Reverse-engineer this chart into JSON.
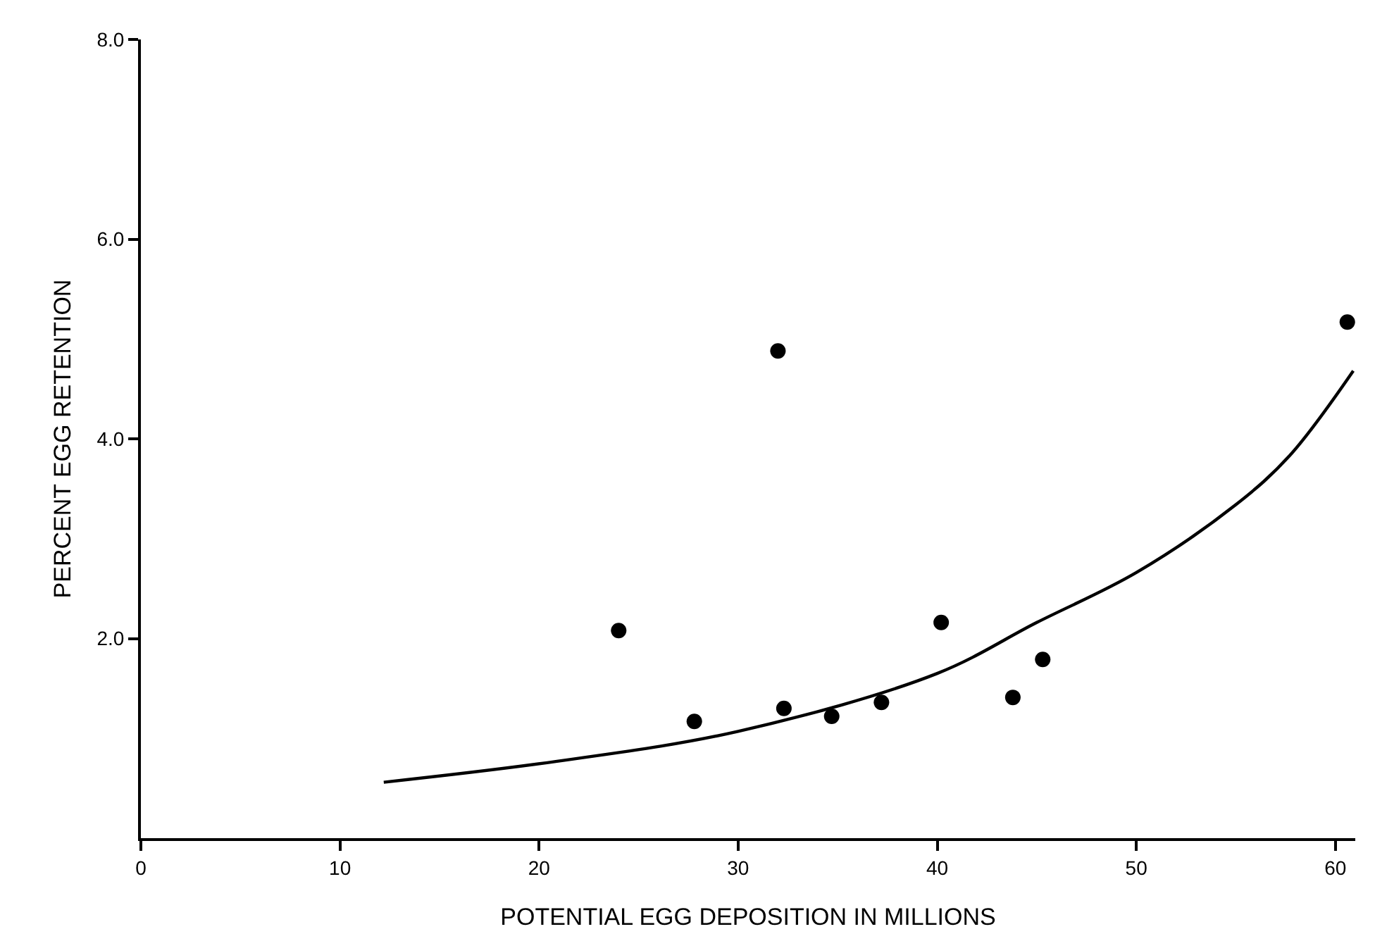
{
  "chart_data": {
    "type": "scatter",
    "xlabel": "POTENTIAL EGG DEPOSITION IN MILLIONS",
    "ylabel": "PERCENT EGG RETENTION",
    "xlim": [
      0,
      61
    ],
    "xticks": [
      0,
      10,
      20,
      30,
      40,
      50,
      60
    ],
    "ylim": [
      0,
      8
    ],
    "yticks": [
      {
        "value": 2,
        "label": "2.0"
      },
      {
        "value": 4,
        "label": "4.0"
      },
      {
        "value": 6,
        "label": "6.0"
      },
      {
        "value": 8,
        "label": "8.0"
      }
    ],
    "grid": false,
    "series": [
      {
        "marker": "circle",
        "color": "#000000",
        "x": [
          24.0,
          27.8,
          32.0,
          32.3,
          34.7,
          37.2,
          40.2,
          43.8,
          45.3,
          60.6
        ],
        "values": [
          2.08,
          1.17,
          4.88,
          1.3,
          1.22,
          1.36,
          2.16,
          1.41,
          1.79,
          5.17
        ]
      },
      {
        "type": "line",
        "color": "#000000",
        "line_style": "solid",
        "x": [
          12.2,
          20.9,
          30,
          40,
          45,
          50,
          55,
          57.7,
          60.9
        ],
        "values": [
          0.56,
          0.77,
          1.07,
          1.65,
          2.16,
          2.66,
          3.34,
          3.83,
          4.68
        ]
      }
    ]
  }
}
